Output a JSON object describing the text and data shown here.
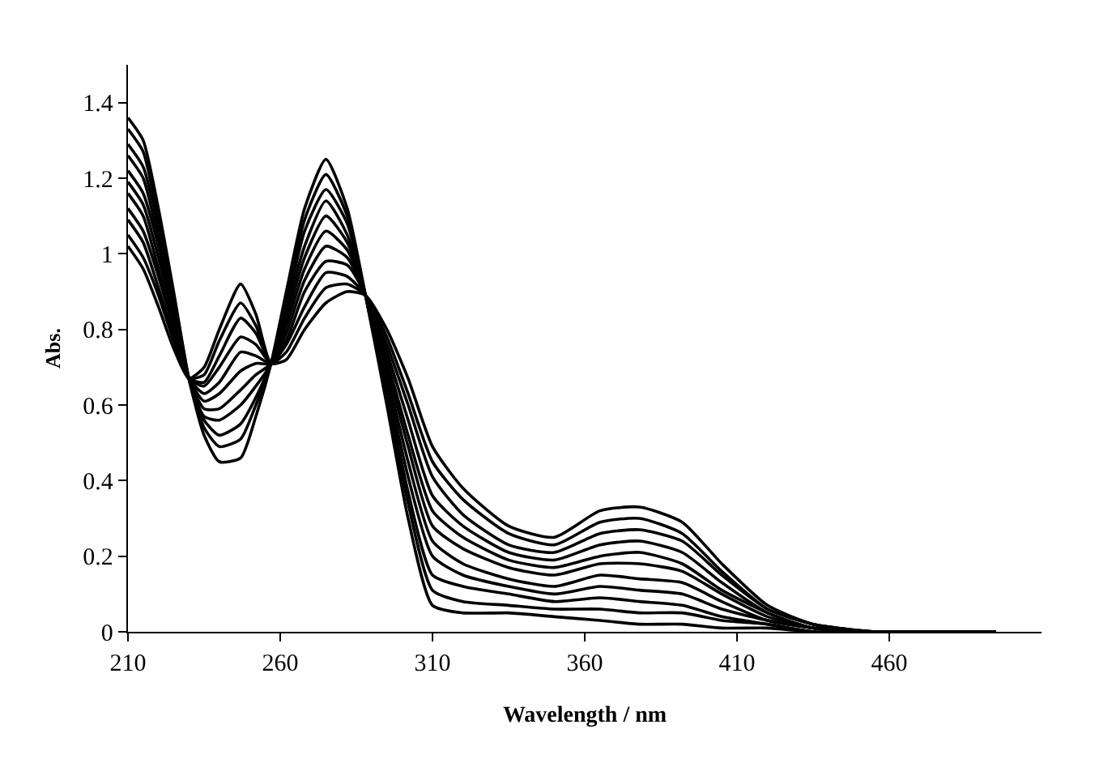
{
  "chart_data": {
    "type": "line",
    "xlabel": "Wavelength / nm",
    "ylabel": "Abs.",
    "x": [
      210,
      215,
      220,
      225,
      230,
      235,
      240,
      247,
      252,
      257,
      262,
      268,
      275,
      282,
      288,
      295,
      302,
      310,
      320,
      335,
      350,
      365,
      378,
      392,
      405,
      420,
      435,
      455,
      495
    ],
    "xlim": [
      210,
      510
    ],
    "xticks": [
      210,
      260,
      310,
      360,
      410,
      460
    ],
    "ylim": [
      0,
      1.5
    ],
    "yticks": [
      0,
      0.2,
      0.4,
      0.6,
      0.8,
      1,
      1.2,
      1.4
    ],
    "marker": "none",
    "line_style": "solid",
    "series": [
      {
        "color": "#000000",
        "values": [
          1.02,
          0.96,
          0.86,
          0.75,
          0.67,
          0.7,
          0.8,
          0.92,
          0.84,
          0.71,
          0.72,
          0.8,
          0.87,
          0.9,
          0.89,
          0.8,
          0.67,
          0.49,
          0.38,
          0.28,
          0.25,
          0.32,
          0.33,
          0.29,
          0.18,
          0.07,
          0.02,
          0,
          0
        ]
      },
      {
        "color": "#000000",
        "values": [
          1.05,
          0.99,
          0.89,
          0.77,
          0.67,
          0.68,
          0.77,
          0.87,
          0.81,
          0.71,
          0.74,
          0.83,
          0.91,
          0.92,
          0.89,
          0.78,
          0.63,
          0.45,
          0.35,
          0.26,
          0.23,
          0.29,
          0.3,
          0.26,
          0.16,
          0.06,
          0.02,
          0,
          0
        ]
      },
      {
        "color": "#000000",
        "values": [
          1.09,
          1.03,
          0.91,
          0.78,
          0.67,
          0.66,
          0.73,
          0.83,
          0.79,
          0.71,
          0.76,
          0.86,
          0.95,
          0.94,
          0.89,
          0.76,
          0.6,
          0.41,
          0.31,
          0.23,
          0.21,
          0.26,
          0.27,
          0.24,
          0.15,
          0.06,
          0.02,
          0,
          0
        ]
      },
      {
        "color": "#000000",
        "values": [
          1.12,
          1.06,
          0.94,
          0.8,
          0.67,
          0.65,
          0.7,
          0.78,
          0.76,
          0.71,
          0.77,
          0.9,
          0.98,
          0.97,
          0.89,
          0.74,
          0.56,
          0.36,
          0.28,
          0.21,
          0.19,
          0.23,
          0.24,
          0.21,
          0.13,
          0.05,
          0.01,
          0,
          0
        ]
      },
      {
        "color": "#000000",
        "values": [
          1.16,
          1.1,
          0.96,
          0.81,
          0.67,
          0.63,
          0.66,
          0.74,
          0.73,
          0.71,
          0.79,
          0.93,
          1.02,
          0.99,
          0.89,
          0.72,
          0.52,
          0.32,
          0.25,
          0.19,
          0.17,
          0.2,
          0.21,
          0.18,
          0.11,
          0.05,
          0.01,
          0,
          0
        ]
      },
      {
        "color": "#000000",
        "values": [
          1.19,
          1.13,
          0.99,
          0.83,
          0.67,
          0.61,
          0.63,
          0.69,
          0.71,
          0.71,
          0.81,
          0.96,
          1.06,
          1.01,
          0.89,
          0.7,
          0.49,
          0.28,
          0.22,
          0.17,
          0.15,
          0.18,
          0.18,
          0.16,
          0.1,
          0.04,
          0.01,
          0,
          0
        ]
      },
      {
        "color": "#000000",
        "values": [
          1.22,
          1.16,
          1.02,
          0.84,
          0.67,
          0.59,
          0.59,
          0.64,
          0.68,
          0.71,
          0.83,
          0.99,
          1.1,
          1.03,
          0.89,
          0.68,
          0.45,
          0.24,
          0.18,
          0.14,
          0.12,
          0.15,
          0.14,
          0.13,
          0.08,
          0.03,
          0.01,
          0,
          0
        ]
      },
      {
        "color": "#000000",
        "values": [
          1.26,
          1.2,
          1.04,
          0.86,
          0.67,
          0.57,
          0.56,
          0.6,
          0.65,
          0.71,
          0.85,
          1.02,
          1.14,
          1.05,
          0.89,
          0.66,
          0.41,
          0.2,
          0.15,
          0.12,
          0.1,
          0.12,
          0.11,
          0.1,
          0.06,
          0.03,
          0.01,
          0,
          0
        ]
      },
      {
        "color": "#000000",
        "values": [
          1.29,
          1.23,
          1.07,
          0.87,
          0.67,
          0.56,
          0.52,
          0.55,
          0.62,
          0.71,
          0.86,
          1.06,
          1.17,
          1.08,
          0.89,
          0.64,
          0.37,
          0.15,
          0.12,
          0.1,
          0.08,
          0.09,
          0.08,
          0.07,
          0.04,
          0.02,
          0,
          0,
          0
        ]
      },
      {
        "color": "#000000",
        "values": [
          1.33,
          1.27,
          1.09,
          0.89,
          0.67,
          0.54,
          0.49,
          0.51,
          0.6,
          0.71,
          0.88,
          1.09,
          1.21,
          1.1,
          0.89,
          0.62,
          0.34,
          0.11,
          0.08,
          0.07,
          0.06,
          0.06,
          0.05,
          0.05,
          0.03,
          0.02,
          0,
          0,
          0
        ]
      },
      {
        "color": "#000000",
        "values": [
          1.36,
          1.3,
          1.12,
          0.9,
          0.67,
          0.52,
          0.45,
          0.46,
          0.57,
          0.71,
          0.9,
          1.12,
          1.25,
          1.12,
          0.89,
          0.6,
          0.3,
          0.07,
          0.05,
          0.05,
          0.04,
          0.03,
          0.02,
          0.02,
          0.01,
          0.01,
          0,
          0,
          0
        ]
      }
    ]
  }
}
